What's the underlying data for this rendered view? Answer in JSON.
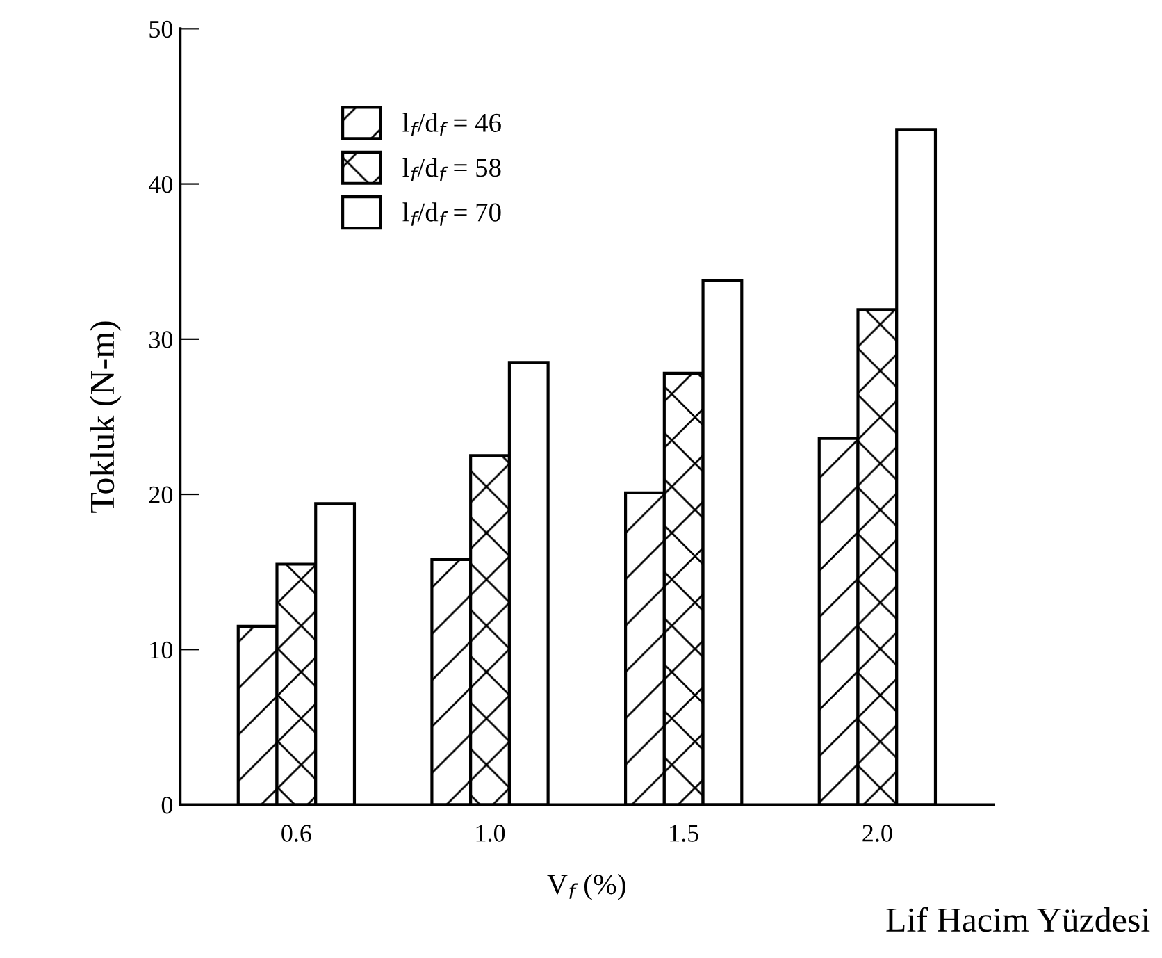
{
  "chart_data": {
    "type": "bar",
    "xlabel": "V$_{f}$ (%)",
    "ylabel": "Tokluk (N-m)",
    "annotations": [
      "Lif Hacim Yüzdesi"
    ],
    "categories": [
      "0.6",
      "1.0",
      "1.5",
      "2.0"
    ],
    "series": [
      {
        "name": "l$_{f}$/d$_{f}$ = 46",
        "color": "#000000",
        "values": [
          11.5,
          15.8,
          20.1,
          23.6
        ]
      },
      {
        "name": "l$_{f}$/d$_{f}$ = 58",
        "color": "#000000",
        "values": [
          15.5,
          22.5,
          27.8,
          31.9
        ]
      },
      {
        "name": "l$_{f}$/d$_{f}$ = 70",
        "color": "#ffffff",
        "values": [
          19.4,
          28.5,
          33.8,
          43.5
        ]
      }
    ],
    "ylim": [
      0,
      50
    ],
    "yticks": [
      0,
      10,
      20,
      30,
      40,
      50
    ],
    "grid": false,
    "legend": "top left"
  }
}
